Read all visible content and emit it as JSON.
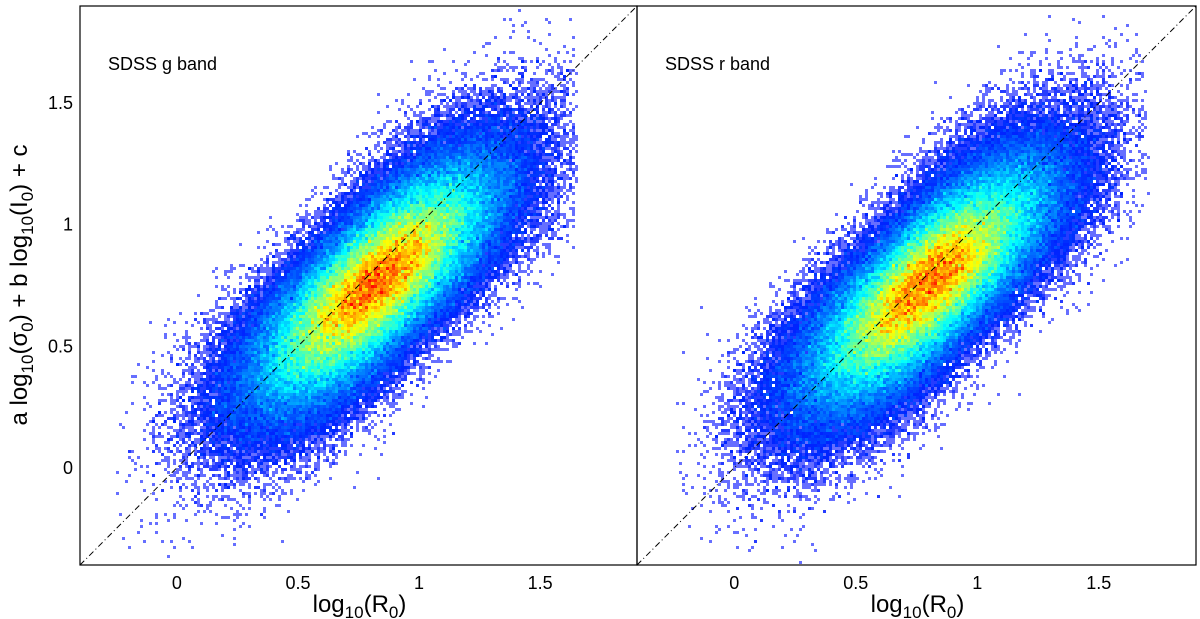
{
  "chart_data": [
    {
      "type": "heatmap",
      "title": "SDSS g band",
      "xlabel": "log10(R0)",
      "ylabel": "a log10(σ0) + b log10(I0) + c",
      "xlim": [
        -0.4,
        1.9
      ],
      "ylim": [
        -0.4,
        1.9
      ],
      "xticks": [
        "0",
        "0.5",
        "1",
        "1.5"
      ],
      "yticks": [
        "0",
        "0.5",
        "1",
        "1.5"
      ],
      "reference_line": {
        "type": "one-to-one",
        "style": "dash-dot",
        "x": [
          -0.4,
          1.9
        ],
        "y": [
          -0.4,
          1.9
        ]
      },
      "density": {
        "center": [
          0.82,
          0.76
        ],
        "major_axis_slope": 1.0,
        "major_spread": 0.36,
        "minor_spread": 0.12,
        "x_range": [
          -0.25,
          1.65
        ]
      },
      "colormap": [
        "#0000ff",
        "#00ffff",
        "#ffff00",
        "#ff0000"
      ]
    },
    {
      "type": "heatmap",
      "title": "SDSS r band",
      "xlabel": "log10(R0)",
      "xlim": [
        -0.4,
        1.9
      ],
      "ylim": [
        -0.4,
        1.9
      ],
      "xticks": [
        "0",
        "0.5",
        "1",
        "1.5"
      ],
      "reference_line": {
        "type": "one-to-one",
        "style": "dash-dot",
        "x": [
          -0.4,
          1.9
        ],
        "y": [
          -0.4,
          1.9
        ]
      },
      "density": {
        "center": [
          0.8,
          0.76
        ],
        "major_axis_slope": 1.0,
        "major_spread": 0.36,
        "minor_spread": 0.12,
        "x_range": [
          -0.25,
          1.7
        ]
      },
      "colormap": [
        "#0000ff",
        "#00ffff",
        "#ffff00",
        "#ff0000"
      ]
    }
  ]
}
